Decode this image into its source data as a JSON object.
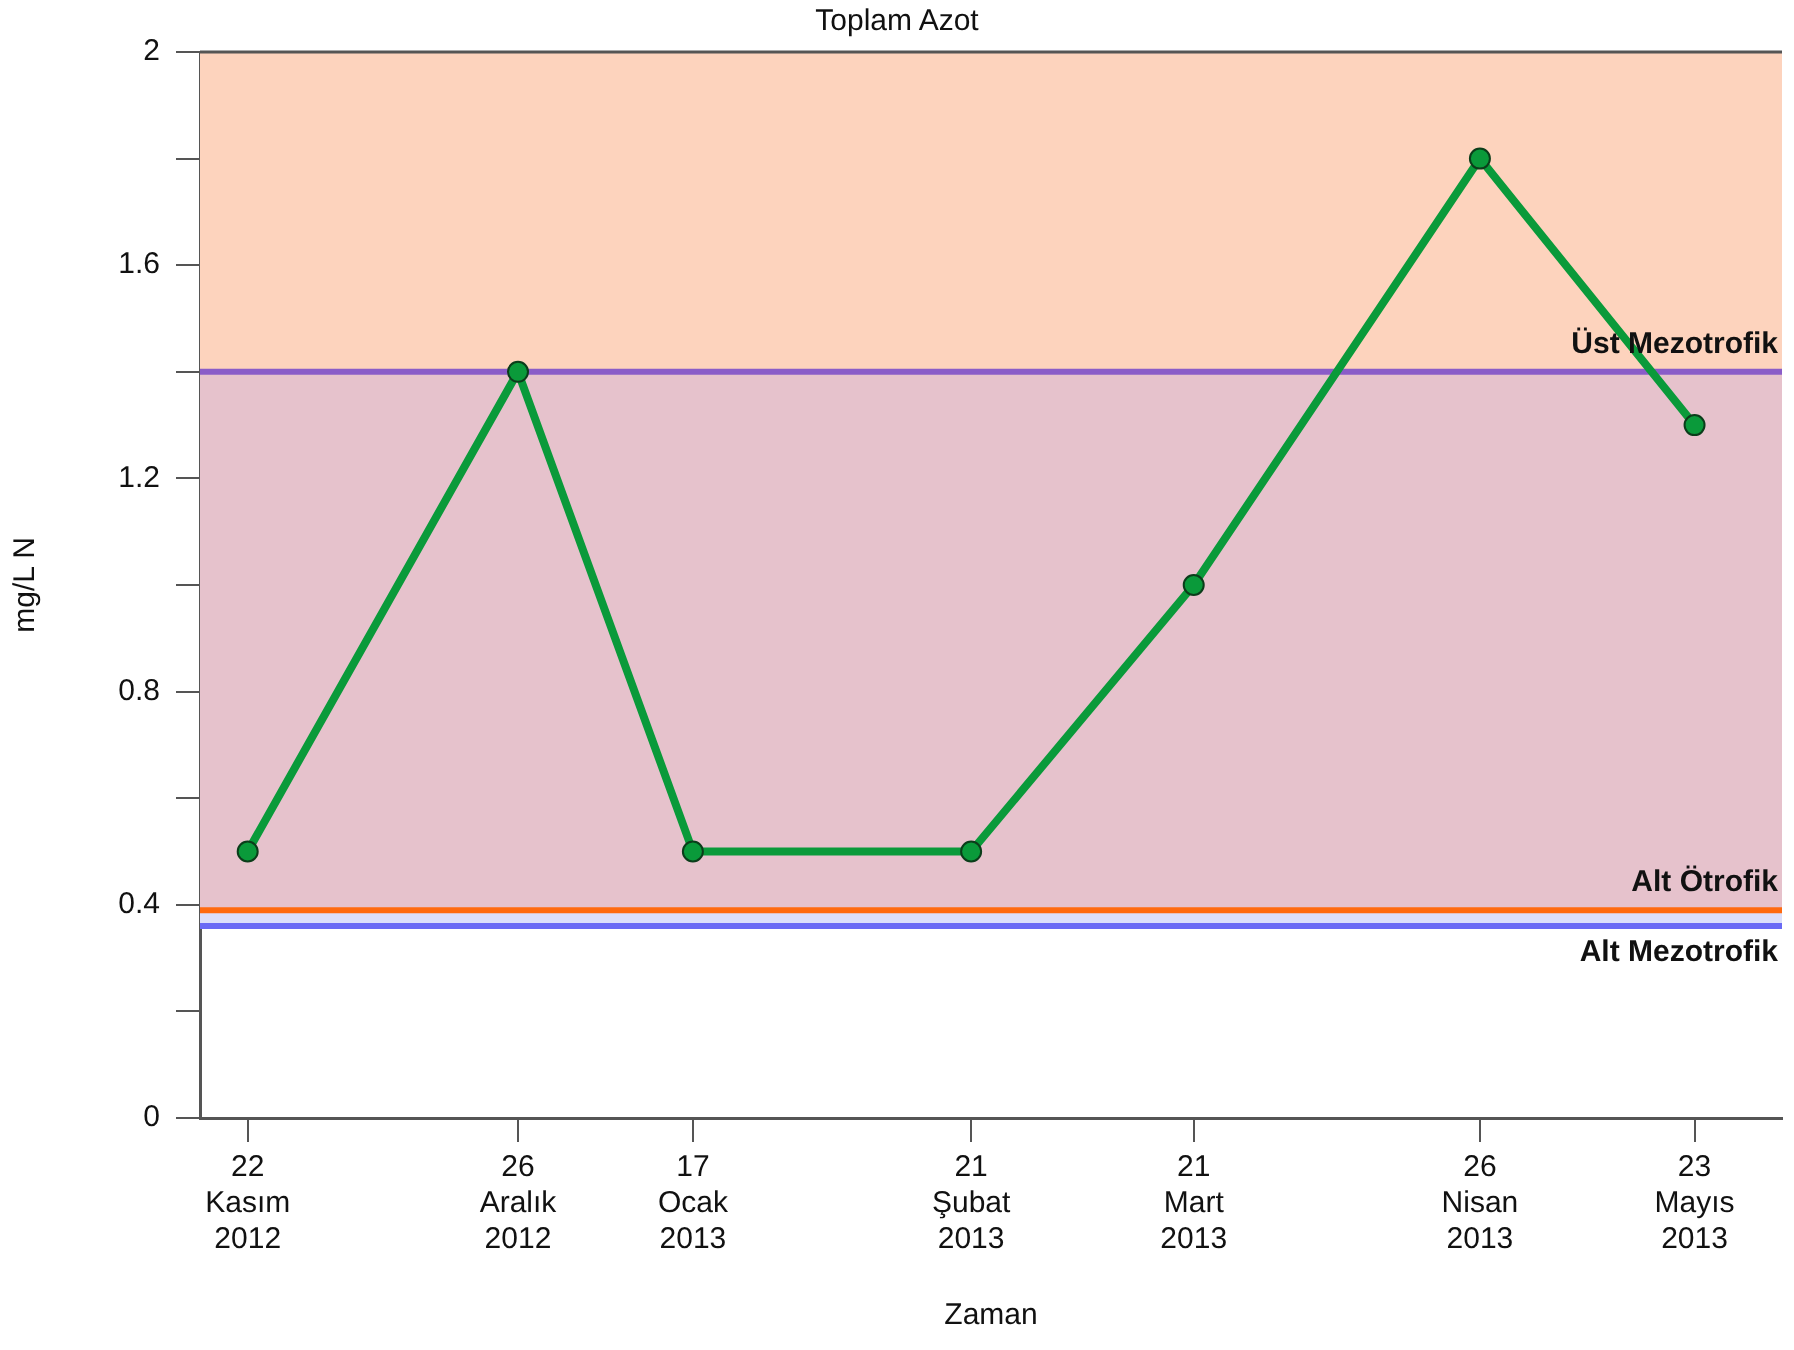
{
  "chart_data": {
    "type": "line",
    "title": "Toplam Azot",
    "xlabel": "Zaman",
    "ylabel": "mg/L N",
    "x": [
      "2012-11-22",
      "2012-12-26",
      "2013-01-17",
      "2013-02-21",
      "2013-03-21",
      "2013-04-26",
      "2013-05-23"
    ],
    "series": [
      {
        "color": "#0a9a3a",
        "values": [
          0.5,
          1.4,
          0.5,
          0.5,
          1.0,
          1.8,
          1.3
        ]
      }
    ],
    "xlim": [
      "2012-11-16",
      "2013-06-03"
    ],
    "xticks": [
      {
        "value": "2012-11-22",
        "label": "22 Kasım 2012"
      },
      {
        "value": "2012-12-26",
        "label": "26 Aralık 2012"
      },
      {
        "value": "2013-01-17",
        "label": "17 Ocak 2013"
      },
      {
        "value": "2013-02-21",
        "label": "21 Şubat 2013"
      },
      {
        "value": "2013-03-21",
        "label": "21 Mart 2013"
      },
      {
        "value": "2013-04-26",
        "label": "26 Nisan 2013"
      },
      {
        "value": "2013-05-23",
        "label": "23 Mayıs 2013"
      }
    ],
    "ylim": [
      0,
      2
    ],
    "yticks": [
      0,
      {
        "value": 0.2,
        "label": null
      },
      0.4,
      {
        "value": 0.6,
        "label": null
      },
      0.8,
      {
        "value": 1.0,
        "label": null
      },
      1.2,
      {
        "value": 1.4,
        "label": null
      },
      1.6,
      {
        "value": 1.8,
        "label": null
      },
      2
    ],
    "bands": [
      {
        "axis": "y",
        "from": 1.4,
        "to": 2,
        "color": "#fdd3bd"
      },
      {
        "axis": "y",
        "from": 0.39,
        "to": 1.4,
        "color": "#e6c2cc"
      },
      {
        "axis": "y",
        "from": 0.36,
        "to": 0.39,
        "color": "#dcdffb"
      }
    ],
    "ref_lines": [
      {
        "axis": "y",
        "value": 1.4,
        "label": "Üst Mezotrofik",
        "color": "#8a5cc8"
      },
      {
        "axis": "y",
        "value": 0.39,
        "label": "Alt Ötrofik",
        "color": "#ff6a10"
      },
      {
        "axis": "y",
        "value": 0.36,
        "label": "Alt Mezotrofik",
        "color": "#6a6af5"
      }
    ],
    "marker": "circle",
    "line_style": "solid",
    "legend": false,
    "grid": false
  }
}
